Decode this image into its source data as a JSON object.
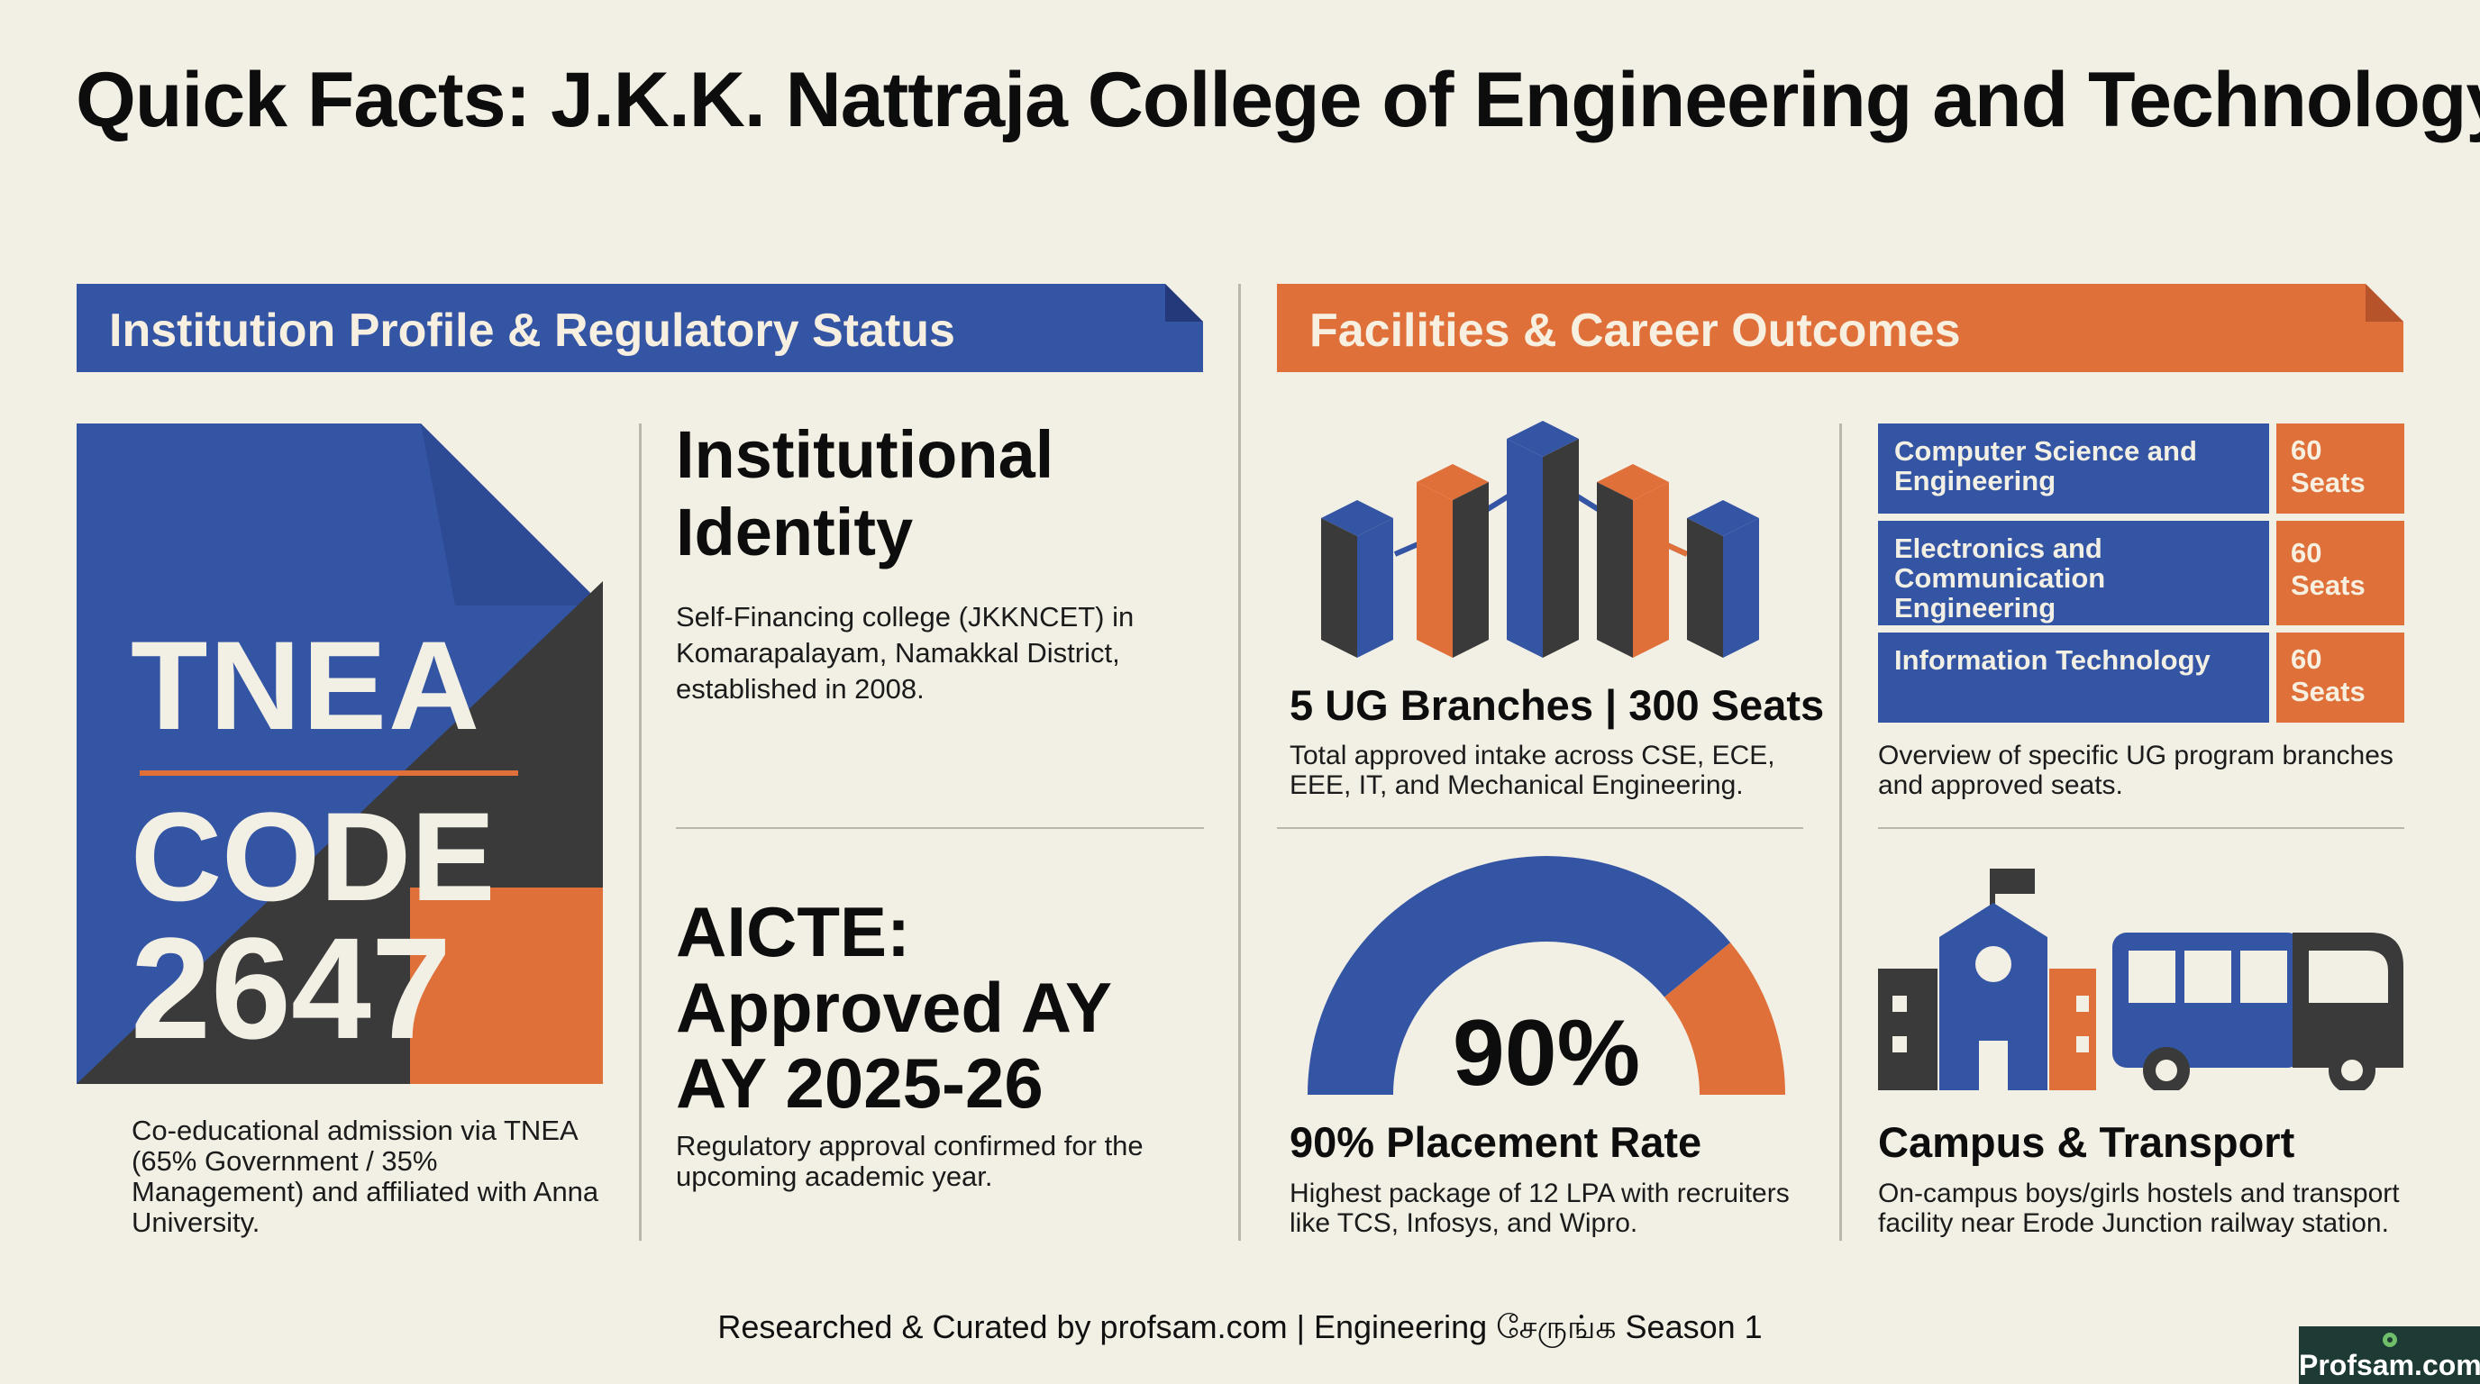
{
  "title": "Quick Facts: J.K.K. Nattraja College of Engineering and Technology",
  "colors": {
    "blue": "#3455a4",
    "orange": "#e0703a",
    "dark": "#3a3a3a",
    "background": "#f2efe4"
  },
  "left_section": {
    "banner": "Institution Profile & Regulatory Status",
    "tnea_graphic": {
      "line1": "TNEA",
      "line2": "CODE",
      "line3": "2647"
    },
    "tnea_caption": "Co-educational admission via TNEA (65% Government / 35% Management) and affiliated with Anna University.",
    "identity_heading": "Institutional Identity",
    "identity_text": "Self-Financing college (JKKNCET) in Komarapalayam, Namakkal District, established in 2008.",
    "aicte_line1": "AICTE:",
    "aicte_line2": "Approved AY",
    "aicte_line3": "AY 2025-26",
    "aicte_text": "Regulatory approval confirmed for the upcoming academic year."
  },
  "right_section": {
    "banner": "Facilities & Career Outcomes",
    "branches": {
      "icon": "bar-chart-3d-icon",
      "heading": "5 UG Branches | 300 Seats",
      "text": "Total approved intake across CSE, ECE, EEE, IT, and Mechanical Engineering."
    },
    "programs": [
      {
        "name": "Computer Science and Engineering",
        "seats": "60 Seats"
      },
      {
        "name": "Electronics and Communication Engineering",
        "seats": "60 Seats"
      },
      {
        "name": "Information Technology",
        "seats": "60 Seats"
      }
    ],
    "programs_caption": "Overview of specific UG program branches and approved seats.",
    "placement": {
      "gauge_value": "90%",
      "gauge_fraction": 0.9,
      "heading": "90% Placement Rate",
      "text": "Highest package of 12 LPA with recruiters like TCS, Infosys, and Wipro."
    },
    "campus": {
      "icon": "school-and-bus-icon",
      "heading": "Campus & Transport",
      "text": "On-campus boys/girls hostels and transport facility near Erode Junction railway station."
    }
  },
  "footer": "Researched & Curated by profsam.com | Engineering சேருங்க Season 1",
  "brand": "Profsam.com"
}
